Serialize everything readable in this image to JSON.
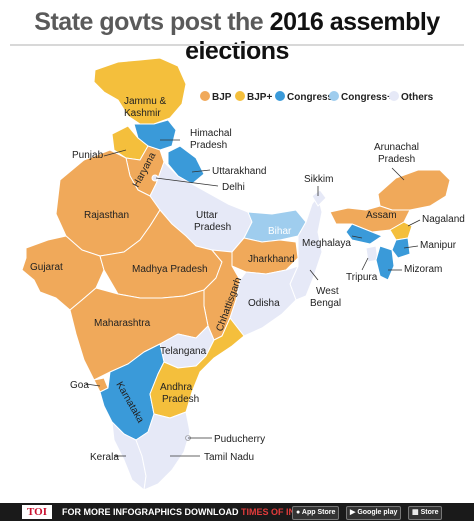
{
  "title": {
    "part1": "State govts post the ",
    "part2": "2016 assembly elections"
  },
  "colors": {
    "bjp": "#f0a95a",
    "bjp_plus": "#f4bf3c",
    "congress": "#3a9ad9",
    "congress_plus": "#9fcdee",
    "others": "#e6e9f7"
  },
  "legend": [
    {
      "label": "BJP",
      "color": "#f0a95a"
    },
    {
      "label": "BJP+",
      "color": "#f4bf3c"
    },
    {
      "label": "Congress",
      "color": "#3a9ad9"
    },
    {
      "label": "Congress+",
      "color": "#9fcdee"
    },
    {
      "label": "Others",
      "color": "#e6e9f7"
    }
  ],
  "states": [
    {
      "name": "Jammu & Kashmir",
      "party": "BJP+"
    },
    {
      "name": "Himachal Pradesh",
      "party": "Congress"
    },
    {
      "name": "Punjab",
      "party": "BJP+"
    },
    {
      "name": "Uttarakhand",
      "party": "Congress"
    },
    {
      "name": "Haryana",
      "party": "BJP"
    },
    {
      "name": "Delhi",
      "party": "Others"
    },
    {
      "name": "Rajasthan",
      "party": "BJP"
    },
    {
      "name": "Uttar Pradesh",
      "party": "Others"
    },
    {
      "name": "Bihar",
      "party": "Congress+"
    },
    {
      "name": "Sikkim",
      "party": "Others"
    },
    {
      "name": "Arunachal Pradesh",
      "party": "BJP"
    },
    {
      "name": "Assam",
      "party": "BJP"
    },
    {
      "name": "Nagaland",
      "party": "BJP+"
    },
    {
      "name": "Meghalaya",
      "party": "Congress"
    },
    {
      "name": "Manipur",
      "party": "Congress"
    },
    {
      "name": "Tripura",
      "party": "Others"
    },
    {
      "name": "Mizoram",
      "party": "Congress"
    },
    {
      "name": "Gujarat",
      "party": "BJP"
    },
    {
      "name": "Madhya Pradesh",
      "party": "BJP"
    },
    {
      "name": "Jharkhand",
      "party": "BJP"
    },
    {
      "name": "Chhattisgarh",
      "party": "BJP"
    },
    {
      "name": "Odisha",
      "party": "Others"
    },
    {
      "name": "West Bengal",
      "party": "Others"
    },
    {
      "name": "Maharashtra",
      "party": "BJP"
    },
    {
      "name": "Telangana",
      "party": "Others"
    },
    {
      "name": "Goa",
      "party": "BJP"
    },
    {
      "name": "Karnataka",
      "party": "Congress"
    },
    {
      "name": "Andhra Pradesh",
      "party": "BJP+"
    },
    {
      "name": "Puducherry",
      "party": "Others"
    },
    {
      "name": "Kerala",
      "party": "Others"
    },
    {
      "name": "Tamil Nadu",
      "party": "Others"
    }
  ],
  "labels": {
    "jk1": "Jammu &",
    "jk2": "Kashmir",
    "hp1": "Himachal",
    "hp2": "Pradesh",
    "punjab": "Punjab",
    "uttarakhand": "Uttarakhand",
    "haryana": "Haryana",
    "delhi": "Delhi",
    "rajasthan": "Rajasthan",
    "up1": "Uttar",
    "up2": "Pradesh",
    "bihar": "Bihar",
    "sikkim": "Sikkim",
    "ar1": "Arunachal",
    "ar2": "Pradesh",
    "assam": "Assam",
    "nagaland": "Nagaland",
    "meghalaya": "Meghalaya",
    "manipur": "Manipur",
    "tripura": "Tripura",
    "mizoram": "Mizoram",
    "gujarat": "Gujarat",
    "mp": "Madhya Pradesh",
    "jharkhand": "Jharkhand",
    "chhattisgarh": "Chhattisgarh",
    "odisha": "Odisha",
    "wb1": "West",
    "wb2": "Bengal",
    "maharashtra": "Maharashtra",
    "telangana": "Telangana",
    "goa": "Goa",
    "karnataka": "Karnataka",
    "ap1": "Andhra",
    "ap2": "Pradesh",
    "puducherry": "Puducherry",
    "kerala": "Kerala",
    "tn": "Tamil Nadu"
  },
  "footer": {
    "logo": "TOI",
    "text_white": "FOR MORE  INFOGRAPHICS DOWNLOAD ",
    "text_red": "TIMES OF INDIA APP",
    "app_store": "App Store",
    "google_play": "Google play",
    "other_store": "Store"
  }
}
